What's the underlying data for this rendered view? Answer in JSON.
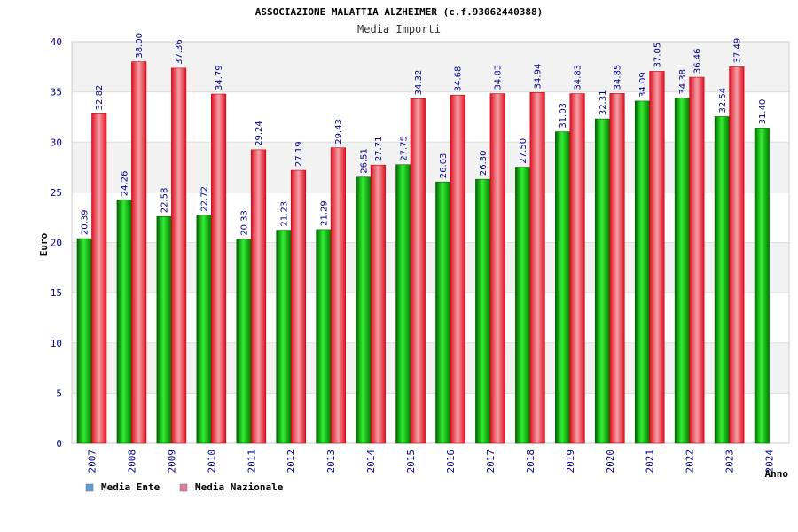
{
  "chart_data": {
    "type": "bar",
    "title": "ASSOCIAZIONE MALATTIA ALZHEIMER (c.f.93062440388)",
    "subtitle": "Media Importi",
    "xlabel": "Anno",
    "ylabel": "Euro",
    "ylim": [
      0,
      40
    ],
    "yticks": [
      "0",
      "5",
      "10",
      "15",
      "20",
      "25",
      "30",
      "35",
      "40"
    ],
    "categories": [
      "2007",
      "2008",
      "2009",
      "2010",
      "2011",
      "2012",
      "2013",
      "2014",
      "2015",
      "2016",
      "2017",
      "2018",
      "2019",
      "2020",
      "2021",
      "2022",
      "2023",
      "2024"
    ],
    "series": [
      {
        "name": "Media Ente",
        "color": "#00aa00",
        "values": [
          20.39,
          24.26,
          22.58,
          22.72,
          20.33,
          21.23,
          21.29,
          26.51,
          27.75,
          26.03,
          26.3,
          27.5,
          31.03,
          32.31,
          34.09,
          34.38,
          32.54,
          31.4
        ],
        "labels": [
          "20.39",
          "24.26",
          "22.58",
          "22.72",
          "20.33",
          "21.23",
          "21.29",
          "26.51",
          "27.75",
          "26.03",
          "26.30",
          "27.50",
          "31.03",
          "32.31",
          "34.09",
          "34.38",
          "32.54",
          "31.40"
        ]
      },
      {
        "name": "Media Nazionale",
        "color": "#e8202a",
        "values": [
          32.82,
          38.0,
          37.36,
          34.79,
          29.24,
          27.19,
          29.43,
          27.71,
          34.32,
          34.68,
          34.83,
          34.94,
          34.83,
          34.85,
          37.05,
          36.46,
          37.49,
          null
        ],
        "labels": [
          "32.82",
          "38.00",
          "37.36",
          "34.79",
          "29.24",
          "27.19",
          "29.43",
          "27.71",
          "34.32",
          "34.68",
          "34.83",
          "34.94",
          "34.83",
          "34.85",
          "37.05",
          "36.46",
          "37.49",
          null
        ]
      }
    ],
    "legend": [
      {
        "label": "Media Ente",
        "color": "#5b9bd5"
      },
      {
        "label": "Media Nazionale",
        "color": "#e07ba0"
      }
    ],
    "grid": true
  }
}
